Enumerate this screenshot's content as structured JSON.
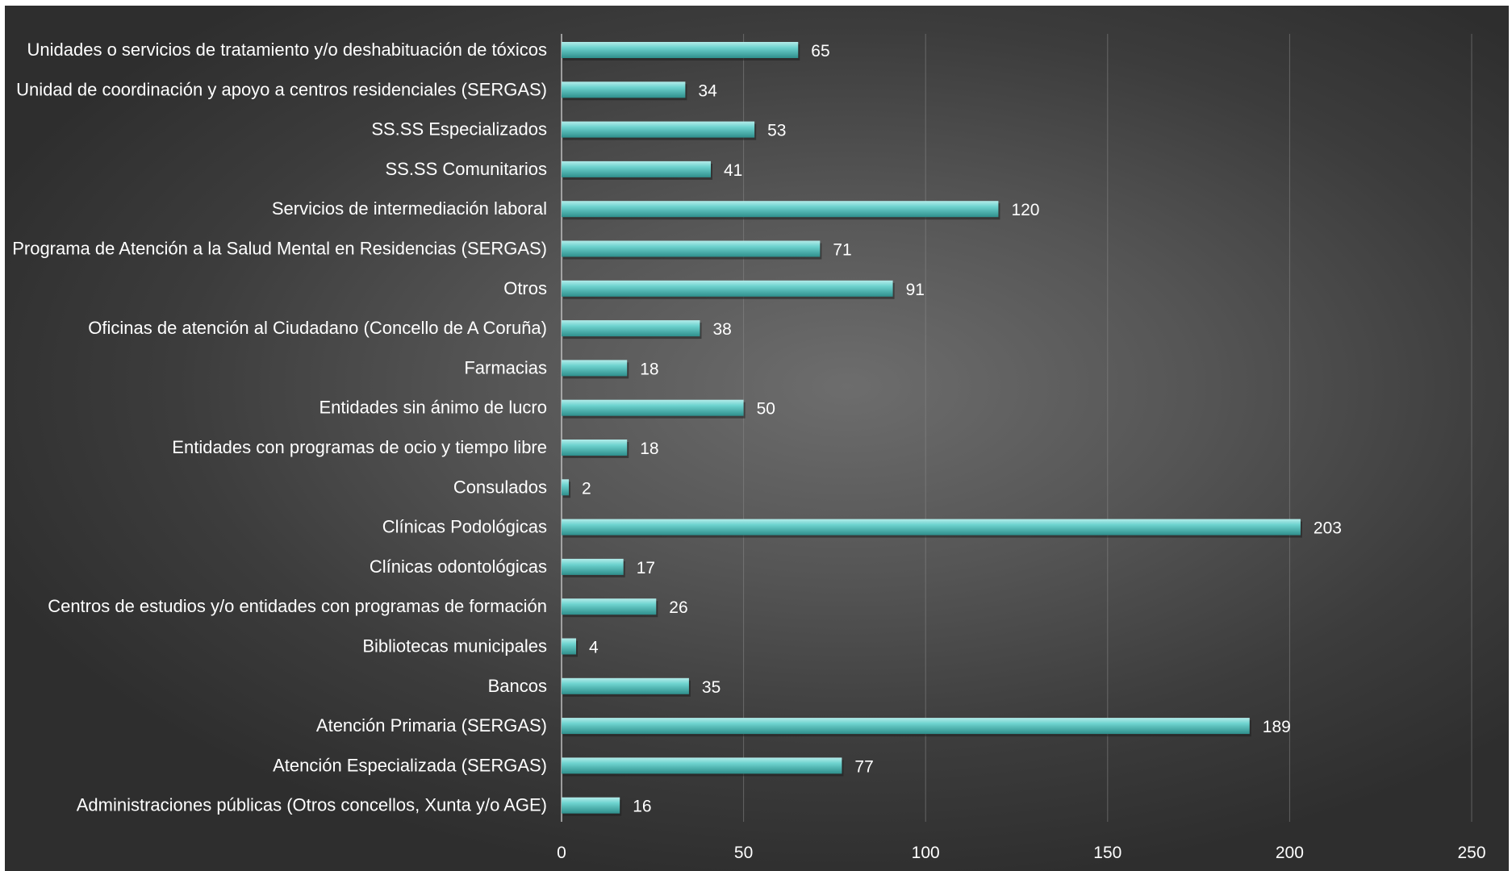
{
  "chart_data": {
    "type": "bar",
    "orientation": "horizontal",
    "categories": [
      "Unidades o servicios de tratamiento y/o deshabituación de tóxicos",
      "Unidad de coordinación y apoyo a centros residenciales (SERGAS)",
      "SS.SS Especializados",
      "SS.SS Comunitarios",
      "Servicios de intermediación laboral",
      "Programa de Atención a la Salud Mental en Residencias (SERGAS)",
      "Otros",
      "Oficinas de atención al Ciudadano (Concello de A Coruña)",
      "Farmacias",
      "Entidades sin ánimo de lucro",
      "Entidades con programas de ocio y tiempo libre",
      "Consulados",
      "Clínicas Podológicas",
      "Clínicas odontológicas",
      "Centros de estudios y/o entidades con programas de formación",
      "Bibliotecas municipales",
      "Bancos",
      "Atención Primaria (SERGAS)",
      "Atención Especializada (SERGAS)",
      "Administraciones públicas (Otros concellos, Xunta y/o AGE)"
    ],
    "values": [
      65,
      34,
      53,
      41,
      120,
      71,
      91,
      38,
      18,
      50,
      18,
      2,
      203,
      17,
      26,
      4,
      35,
      189,
      77,
      16
    ],
    "data_labels": [
      "65",
      "34",
      "53",
      "41",
      "120",
      "71",
      "91",
      "38",
      "18",
      "50",
      "18",
      "2",
      "203",
      "17",
      "26",
      "4",
      "35",
      "189",
      "77",
      "16"
    ],
    "xlim": [
      0,
      250
    ],
    "xticks": [
      0,
      50,
      100,
      150,
      200,
      250
    ],
    "xtick_labels": [
      "0",
      "50",
      "100",
      "150",
      "200",
      "250"
    ],
    "title": "",
    "xlabel": "",
    "ylabel": "",
    "grid": "vertical",
    "legend": "none",
    "colors": {
      "bar": "#6ed3cf",
      "bar_highlight": "#b4ecea",
      "bar_shadow": "#2f8f8c",
      "background_center": "#6d6d6d",
      "background_edge": "#2e2e2e",
      "text": "#ffffff",
      "grid": "#8a8a8a"
    }
  }
}
